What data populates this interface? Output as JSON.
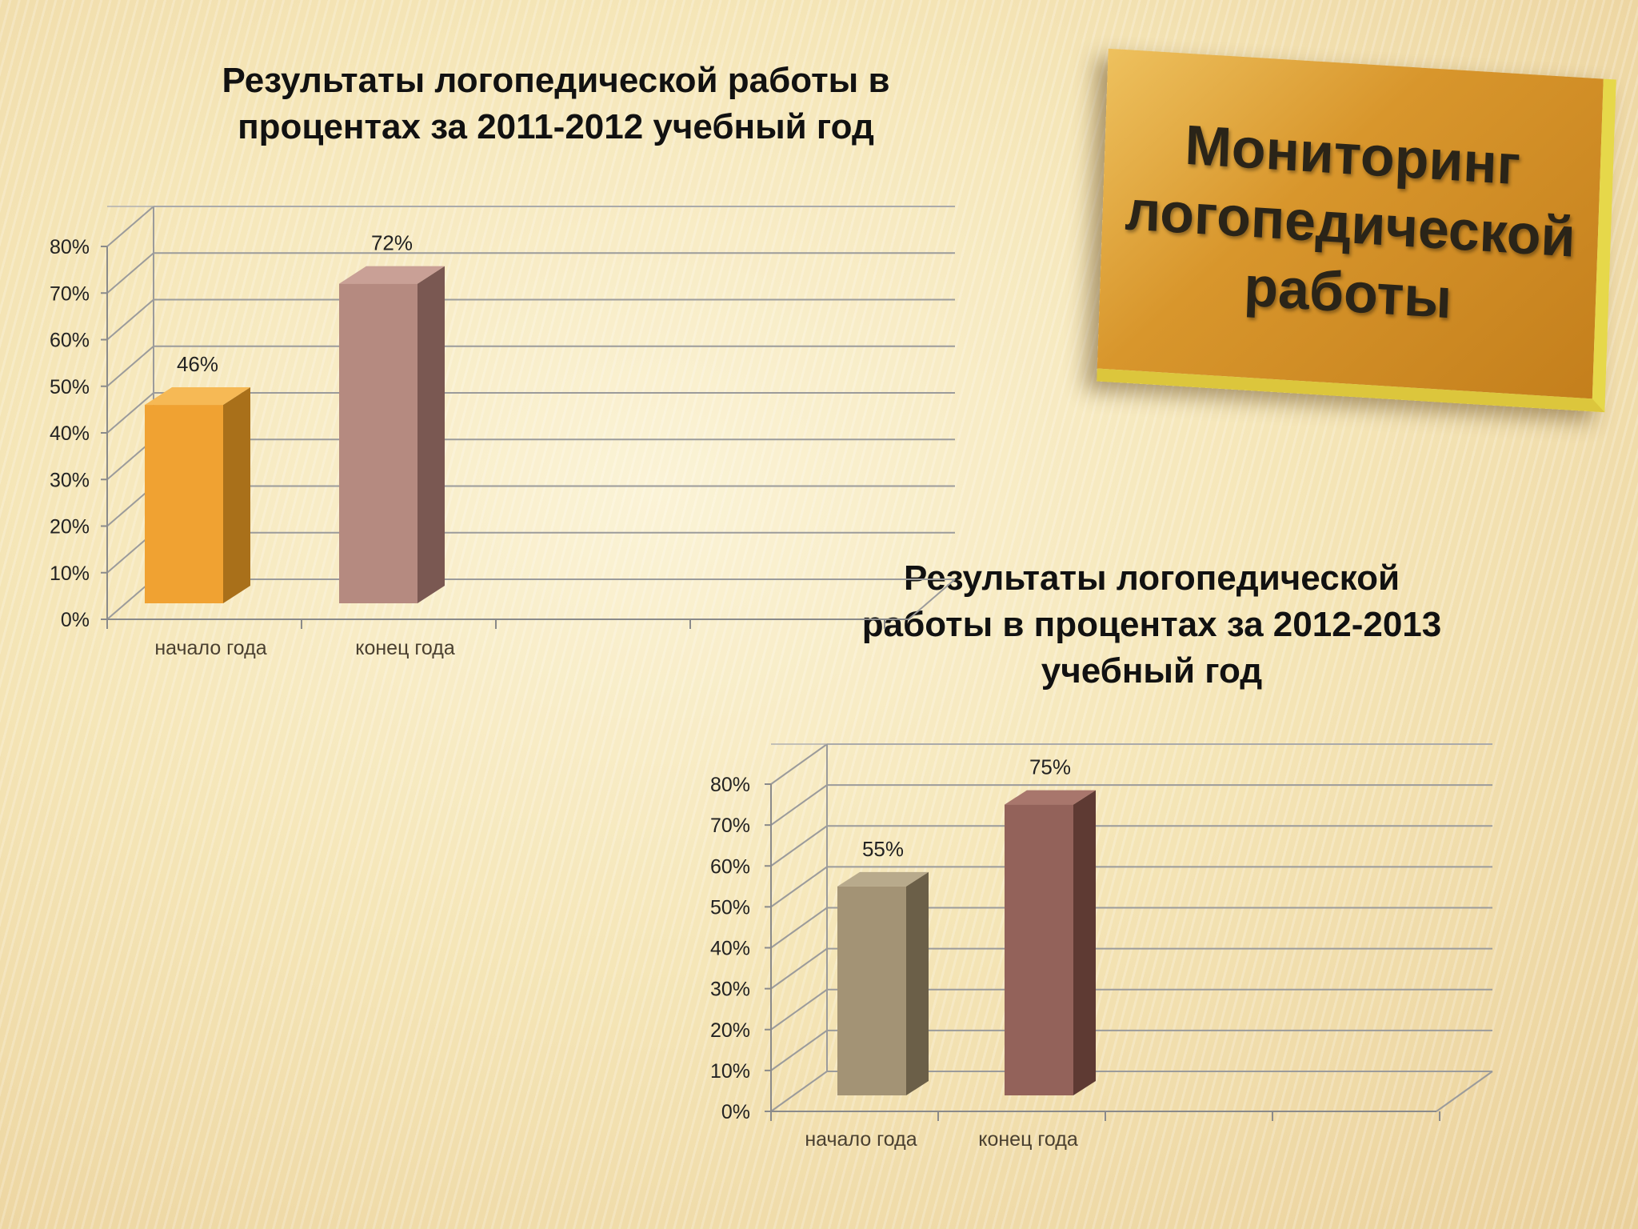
{
  "badge": {
    "lines": [
      "Мониторинг",
      "логопедической",
      "работы"
    ]
  },
  "chart_data": [
    {
      "type": "bar",
      "title_lines": [
        "Результаты логопедической работы в",
        "процентах  за 2011-2012 учебный год"
      ],
      "categories": [
        "начало года",
        "конец года"
      ],
      "values": [
        46,
        72
      ],
      "data_labels": [
        "46%",
        "72%"
      ],
      "ylim": [
        0,
        80
      ],
      "yticks": [
        "0%",
        "10%",
        "20%",
        "30%",
        "40%",
        "50%",
        "60%",
        "70%",
        "80%"
      ],
      "grid": true,
      "colors": {
        "front": [
          "#f0a232",
          "#b58a80"
        ],
        "side": [
          "#a9701a",
          "#7a5852"
        ],
        "top": [
          "#f6b955",
          "#c9a096"
        ]
      }
    },
    {
      "type": "bar",
      "title_lines": [
        "Результаты логопедической",
        "работы в процентах  за 2012-2013",
        "учебный год"
      ],
      "categories": [
        "начало года",
        "конец года"
      ],
      "values": [
        55,
        75
      ],
      "data_labels": [
        "55%",
        "75%"
      ],
      "ylim": [
        0,
        80
      ],
      "yticks": [
        "0%",
        "10%",
        "20%",
        "30%",
        "40%",
        "50%",
        "60%",
        "70%",
        "80%"
      ],
      "grid": true,
      "colors": {
        "front": [
          "#a39375",
          "#93625a"
        ],
        "side": [
          "#6b5f48",
          "#5e3a33"
        ],
        "top": [
          "#b8aa8c",
          "#a8766c"
        ]
      }
    }
  ]
}
